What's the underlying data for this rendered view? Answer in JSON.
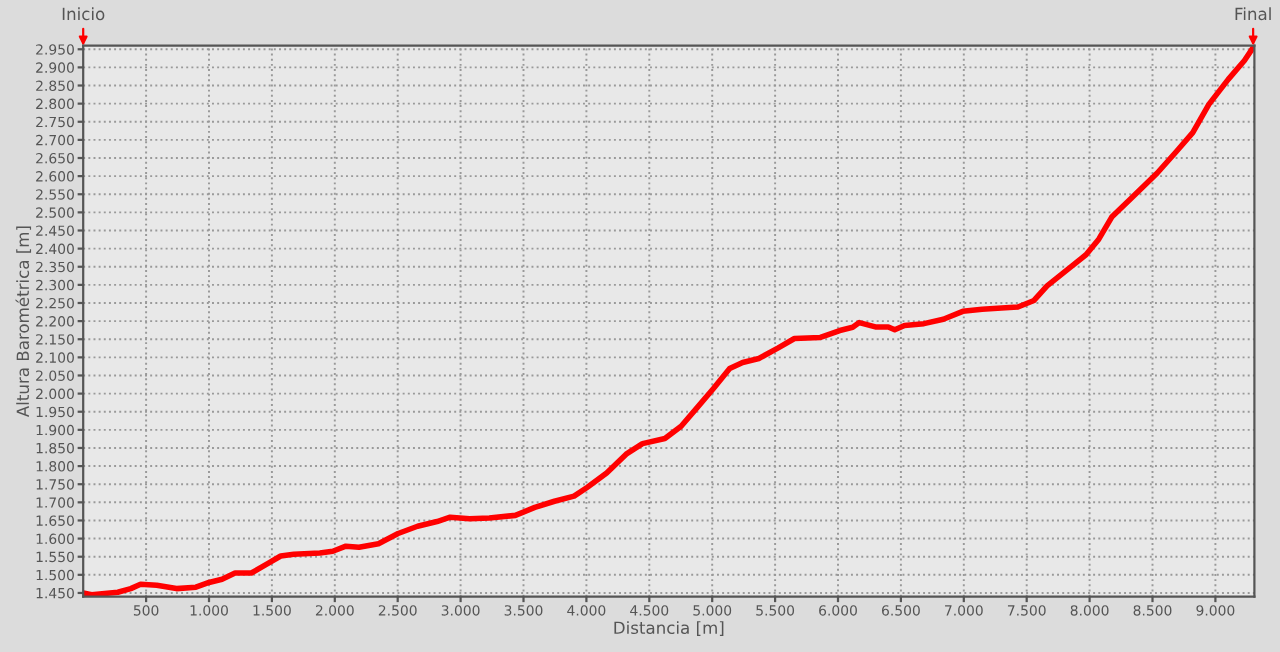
{
  "chart_data": {
    "type": "line",
    "xlabel": "Distancia [m]",
    "ylabel": "Altura Barométrica [m]",
    "series": [
      {
        "color": "#ff0000",
        "x": [
          0,
          67,
          275,
          378,
          456,
          585,
          741,
          896,
          1000,
          1104,
          1207,
          1337,
          1466,
          1570,
          1674,
          1881,
          1984,
          2088,
          2192,
          2347,
          2503,
          2658,
          2813,
          2917,
          3072,
          3228,
          3435,
          3590,
          3746,
          3902,
          4005,
          4161,
          4316,
          4446,
          4624,
          4753,
          4882,
          5010,
          5139,
          5242,
          5371,
          5525,
          5654,
          5860,
          6014,
          6117,
          6169,
          6297,
          6400,
          6451,
          6529,
          6683,
          6837,
          6992,
          7146,
          7300,
          7430,
          7558,
          7662,
          7816,
          7971,
          8073,
          8176,
          8331,
          8536,
          8690,
          8820,
          8948,
          9102,
          9231,
          9300
        ],
        "values": [
          1450,
          1445,
          1452,
          1462,
          1474,
          1471,
          1462,
          1466,
          1479,
          1488,
          1505,
          1505,
          1531,
          1552,
          1557,
          1560,
          1565,
          1579,
          1576,
          1586,
          1614,
          1634,
          1647,
          1659,
          1655,
          1657,
          1664,
          1686,
          1703,
          1717,
          1741,
          1781,
          1833,
          1862,
          1876,
          1910,
          1962,
          2014,
          2069,
          2086,
          2097,
          2126,
          2152,
          2155,
          2174,
          2183,
          2196,
          2184,
          2184,
          2176,
          2188,
          2193,
          2205,
          2227,
          2233,
          2236,
          2239,
          2257,
          2297,
          2340,
          2383,
          2426,
          2487,
          2539,
          2608,
          2668,
          2720,
          2798,
          2867,
          2919,
          2955
        ]
      }
    ],
    "xlim": [
      0,
      9310
    ],
    "ylim": [
      1440,
      2960
    ],
    "xticks": [
      {
        "value": 500,
        "label": "500"
      },
      {
        "value": 1000,
        "label": "1.000"
      },
      {
        "value": 1500,
        "label": "1.500"
      },
      {
        "value": 2000,
        "label": "2.000"
      },
      {
        "value": 2500,
        "label": "2.500"
      },
      {
        "value": 3000,
        "label": "3.000"
      },
      {
        "value": 3500,
        "label": "3.500"
      },
      {
        "value": 4000,
        "label": "4.000"
      },
      {
        "value": 4500,
        "label": "4.500"
      },
      {
        "value": 5000,
        "label": "5.000"
      },
      {
        "value": 5500,
        "label": "5.500"
      },
      {
        "value": 6000,
        "label": "6.000"
      },
      {
        "value": 6500,
        "label": "6.500"
      },
      {
        "value": 7000,
        "label": "7.000"
      },
      {
        "value": 7500,
        "label": "7.500"
      },
      {
        "value": 8000,
        "label": "8.000"
      },
      {
        "value": 8500,
        "label": "8.500"
      },
      {
        "value": 9000,
        "label": "9.000"
      }
    ],
    "yticks": [
      {
        "value": 1450,
        "label": "1.450"
      },
      {
        "value": 1500,
        "label": "1.500"
      },
      {
        "value": 1550,
        "label": "1.550"
      },
      {
        "value": 1600,
        "label": "1.600"
      },
      {
        "value": 1650,
        "label": "1.650"
      },
      {
        "value": 1700,
        "label": "1.700"
      },
      {
        "value": 1750,
        "label": "1.750"
      },
      {
        "value": 1800,
        "label": "1.800"
      },
      {
        "value": 1850,
        "label": "1.850"
      },
      {
        "value": 1900,
        "label": "1.900"
      },
      {
        "value": 1950,
        "label": "1.950"
      },
      {
        "value": 2000,
        "label": "2.000"
      },
      {
        "value": 2050,
        "label": "2.050"
      },
      {
        "value": 2100,
        "label": "2.100"
      },
      {
        "value": 2150,
        "label": "2.150"
      },
      {
        "value": 2200,
        "label": "2.200"
      },
      {
        "value": 2250,
        "label": "2.250"
      },
      {
        "value": 2300,
        "label": "2.300"
      },
      {
        "value": 2350,
        "label": "2.350"
      },
      {
        "value": 2400,
        "label": "2.400"
      },
      {
        "value": 2450,
        "label": "2.450"
      },
      {
        "value": 2500,
        "label": "2.500"
      },
      {
        "value": 2550,
        "label": "2.550"
      },
      {
        "value": 2600,
        "label": "2.600"
      },
      {
        "value": 2650,
        "label": "2.650"
      },
      {
        "value": 2700,
        "label": "2.700"
      },
      {
        "value": 2750,
        "label": "2.750"
      },
      {
        "value": 2800,
        "label": "2.800"
      },
      {
        "value": 2850,
        "label": "2.850"
      },
      {
        "value": 2900,
        "label": "2.900"
      },
      {
        "value": 2950,
        "label": "2.950"
      }
    ],
    "grid": true,
    "marker": "none",
    "line_style": "solid",
    "annotations": [
      "Inicio",
      "Final"
    ]
  }
}
